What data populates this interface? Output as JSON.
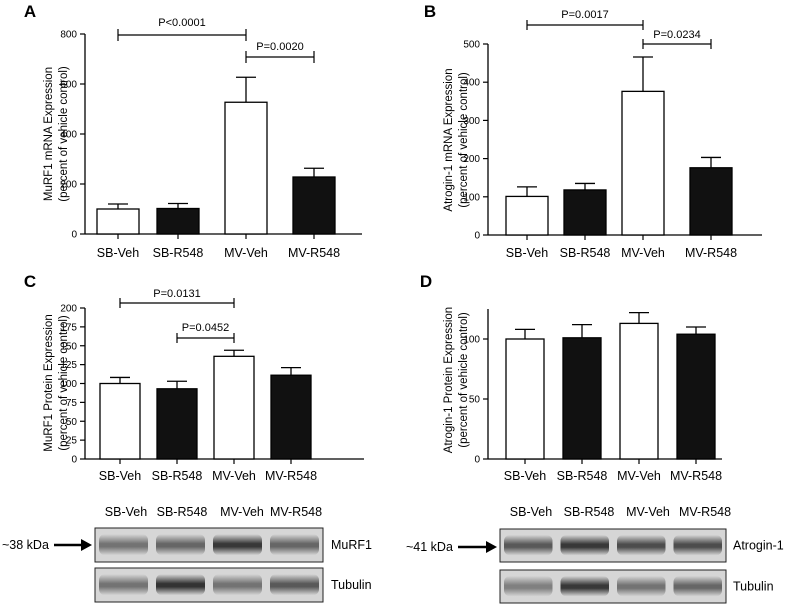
{
  "chart_data": [
    {
      "panel": "A",
      "type": "bar",
      "categories": [
        "SB-Veh",
        "SB-R548",
        "MV-Veh",
        "MV-R548"
      ],
      "values": [
        100,
        102,
        527,
        228
      ],
      "errors": [
        20,
        20,
        100,
        35
      ],
      "bar_fill": [
        "white",
        "black",
        "white",
        "black"
      ],
      "ylabel_line1": "MuRF1 mRNA Expression",
      "ylabel_line2": "(percent of vehicle control)",
      "ylim": [
        0,
        800
      ],
      "yticks": [
        0,
        200,
        400,
        600,
        800
      ],
      "annotations": [
        {
          "text": "P<0.0001",
          "from": 0,
          "to": 2
        },
        {
          "text": "P=0.0020",
          "from": 2,
          "to": 3
        }
      ]
    },
    {
      "panel": "B",
      "type": "bar",
      "categories": [
        "SB-Veh",
        "SB-R548",
        "MV-Veh",
        "MV-R548"
      ],
      "values": [
        101,
        118,
        376,
        176
      ],
      "errors": [
        25,
        17,
        90,
        27
      ],
      "bar_fill": [
        "white",
        "black",
        "white",
        "black"
      ],
      "ylabel_line1": "Atrogin-1 mRNA Expression",
      "ylabel_line2": "(percent of vehicle control)",
      "ylim": [
        0,
        500
      ],
      "yticks": [
        0,
        100,
        200,
        300,
        400,
        500
      ],
      "annotations": [
        {
          "text": "P=0.0017",
          "from": 0,
          "to": 2
        },
        {
          "text": "P=0.0234",
          "from": 2,
          "to": 3
        }
      ]
    },
    {
      "panel": "C",
      "type": "bar",
      "categories": [
        "SB-Veh",
        "SB-R548",
        "MV-Veh",
        "MV-R548"
      ],
      "values": [
        100,
        93,
        136,
        111
      ],
      "errors": [
        8,
        10,
        8,
        10
      ],
      "bar_fill": [
        "white",
        "black",
        "white",
        "black"
      ],
      "ylabel_line1": "MuRF1 Protein Expression",
      "ylabel_line2": "(percent of vehicle control)",
      "ylim": [
        0,
        200
      ],
      "yticks": [
        0,
        25,
        50,
        75,
        100,
        125,
        150,
        175,
        200
      ],
      "annotations": [
        {
          "text": "P=0.0131",
          "from": 0,
          "to": 2
        },
        {
          "text": "P=0.0452",
          "from": 1,
          "to": 2
        }
      ]
    },
    {
      "panel": "D",
      "type": "bar",
      "categories": [
        "SB-Veh",
        "SB-R548",
        "MV-Veh",
        "MV-R548"
      ],
      "values": [
        100,
        101,
        113,
        104
      ],
      "errors": [
        8,
        11,
        9,
        6
      ],
      "bar_fill": [
        "white",
        "black",
        "white",
        "black"
      ],
      "ylabel_line1": "Atrogin-1 Protein Expression",
      "ylabel_line2": "(percent of vehicle control)",
      "ylim": [
        0,
        125
      ],
      "yticks": [
        0,
        50,
        100
      ],
      "annotations": []
    }
  ],
  "blots": [
    {
      "panel": "C",
      "lanes": [
        "SB-Veh",
        "SB-R548",
        "MV-Veh",
        "MV-R548"
      ],
      "marker": "~38 kDa",
      "strips": [
        {
          "label": "MuRF1",
          "intensity": [
            0.55,
            0.6,
            0.78,
            0.6
          ]
        },
        {
          "label": "Tubulin",
          "intensity": [
            0.55,
            0.8,
            0.55,
            0.65
          ]
        }
      ]
    },
    {
      "panel": "D",
      "lanes": [
        "SB-Veh",
        "SB-R548",
        "MV-Veh",
        "MV-R548"
      ],
      "marker": "~41 kDa",
      "strips": [
        {
          "label": "Atrogin-1",
          "intensity": [
            0.65,
            0.78,
            0.7,
            0.7
          ]
        },
        {
          "label": "Tubulin",
          "intensity": [
            0.5,
            0.78,
            0.55,
            0.6
          ]
        }
      ]
    }
  ]
}
